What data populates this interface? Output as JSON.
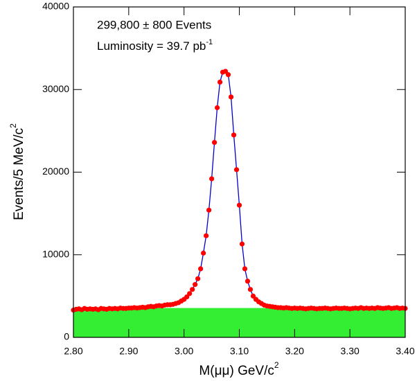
{
  "chart_data": {
    "type": "scatter",
    "annotations": [
      "299,800 ± 800 Events",
      "Luminosity = 39.7 pb"
    ],
    "annotation_superscript": "-1",
    "x_label": "M(μμ) GeV/c",
    "x_label_superscript": "2",
    "y_label": "Events/5 MeV/c",
    "y_label_superscript": "2",
    "xlim": [
      2.8,
      3.4
    ],
    "ylim": [
      0,
      40000
    ],
    "xticks": [
      {
        "value": 2.8,
        "label": "2.80"
      },
      {
        "value": 2.9,
        "label": "2.90"
      },
      {
        "value": 3.0,
        "label": "3.00"
      },
      {
        "value": 3.1,
        "label": "3.10"
      },
      {
        "value": 3.2,
        "label": "3.20"
      },
      {
        "value": 3.3,
        "label": "3.30"
      },
      {
        "value": 3.4,
        "label": "3.40"
      }
    ],
    "yticks": [
      0,
      10000,
      20000,
      30000,
      40000
    ],
    "points": {
      "color": "#ff0000",
      "fit_color": "#0000cc",
      "x": [
        2.8,
        2.805,
        2.81,
        2.815,
        2.82,
        2.825,
        2.83,
        2.835,
        2.84,
        2.845,
        2.85,
        2.855,
        2.86,
        2.865,
        2.87,
        2.875,
        2.88,
        2.885,
        2.89,
        2.895,
        2.9,
        2.905,
        2.91,
        2.915,
        2.92,
        2.925,
        2.93,
        2.935,
        2.94,
        2.945,
        2.95,
        2.955,
        2.96,
        2.965,
        2.97,
        2.975,
        2.98,
        2.985,
        2.99,
        2.995,
        3.0,
        3.005,
        3.01,
        3.015,
        3.02,
        3.025,
        3.03,
        3.035,
        3.04,
        3.045,
        3.05,
        3.055,
        3.06,
        3.065,
        3.07,
        3.075,
        3.08,
        3.085,
        3.09,
        3.095,
        3.1,
        3.105,
        3.11,
        3.115,
        3.12,
        3.125,
        3.13,
        3.135,
        3.14,
        3.145,
        3.15,
        3.155,
        3.16,
        3.165,
        3.17,
        3.175,
        3.18,
        3.185,
        3.19,
        3.195,
        3.2,
        3.205,
        3.21,
        3.215,
        3.22,
        3.225,
        3.23,
        3.235,
        3.24,
        3.245,
        3.25,
        3.255,
        3.26,
        3.265,
        3.27,
        3.275,
        3.28,
        3.285,
        3.29,
        3.295,
        3.3,
        3.305,
        3.31,
        3.315,
        3.32,
        3.325,
        3.33,
        3.335,
        3.34,
        3.345,
        3.35,
        3.355,
        3.36,
        3.365,
        3.37,
        3.375,
        3.38,
        3.385,
        3.39,
        3.395,
        3.4
      ],
      "values": [
        3300,
        3400,
        3450,
        3350,
        3500,
        3400,
        3450,
        3400,
        3450,
        3350,
        3500,
        3450,
        3400,
        3500,
        3450,
        3500,
        3450,
        3550,
        3500,
        3500,
        3550,
        3550,
        3600,
        3550,
        3600,
        3650,
        3600,
        3700,
        3750,
        3700,
        3800,
        3850,
        3800,
        3900,
        3950,
        3950,
        4000,
        4100,
        4200,
        4400,
        4600,
        4900,
        5300,
        5800,
        6400,
        7100,
        8300,
        10200,
        12300,
        15400,
        19200,
        23600,
        27800,
        30900,
        32100,
        32200,
        31800,
        29100,
        24500,
        20300,
        16000,
        11300,
        8300,
        6800,
        5800,
        5000,
        4600,
        4300,
        4100,
        3900,
        3800,
        3750,
        3700,
        3650,
        3600,
        3600,
        3550,
        3600,
        3550,
        3500,
        3550,
        3500,
        3550,
        3500,
        3450,
        3500,
        3550,
        3500,
        3450,
        3500,
        3500,
        3550,
        3500,
        3450,
        3500,
        3550,
        3500,
        3500,
        3550,
        3500,
        3450,
        3500,
        3550,
        3500,
        3600,
        3500,
        3550,
        3500,
        3550,
        3500,
        3600,
        3550,
        3500,
        3550,
        3600,
        3500,
        3550,
        3600,
        3500,
        3550,
        3500
      ]
    },
    "background": {
      "color": "#33ee33",
      "x": [
        2.8,
        3.4
      ],
      "values": [
        3550,
        3550
      ]
    }
  }
}
